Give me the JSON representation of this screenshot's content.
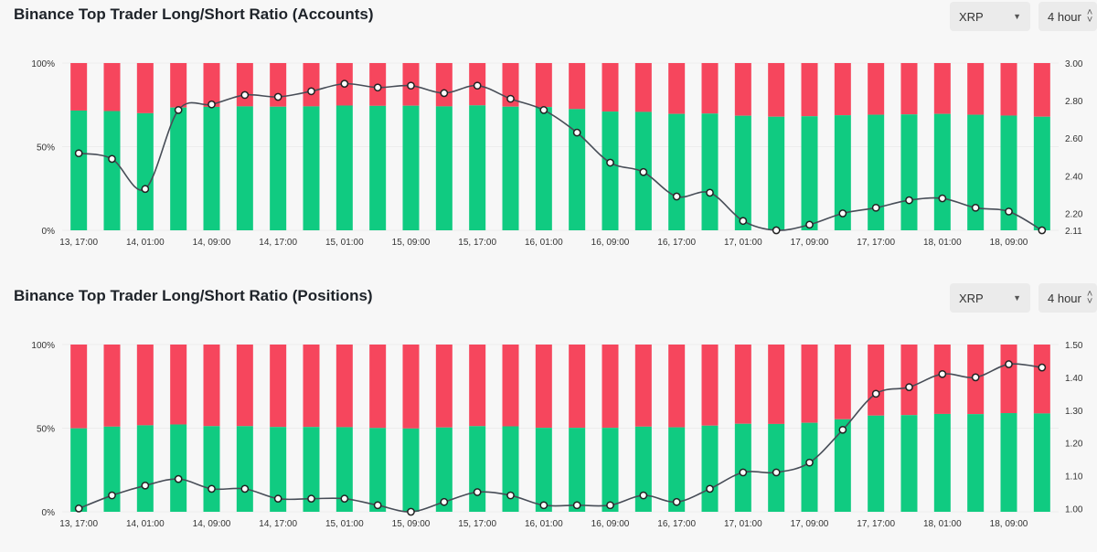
{
  "panels": [
    {
      "title": "Binance Top Trader Long/Short Ratio (Accounts)",
      "symbol_select": {
        "value": "XRP",
        "icon": "chevron-down-icon"
      },
      "interval_select": {
        "value": "4 hour",
        "icon": "up-down-icon"
      }
    },
    {
      "title": "Binance Top Trader Long/Short Ratio (Positions)",
      "symbol_select": {
        "value": "XRP",
        "icon": "chevron-down-icon"
      },
      "interval_select": {
        "value": "4 hour",
        "icon": "up-down-icon"
      }
    }
  ],
  "colors": {
    "long": "#10cb81",
    "short": "#f6465d",
    "line": "#474d57",
    "point_fill": "#ffffff"
  },
  "chart_data": [
    {
      "type": "bar",
      "title": "Binance Top Trader Long/Short Ratio (Accounts)",
      "stacked": true,
      "x_tick_labels": [
        "13, 17:00",
        "14, 01:00",
        "14, 09:00",
        "14, 17:00",
        "15, 01:00",
        "15, 09:00",
        "15, 17:00",
        "16, 01:00",
        "16, 09:00",
        "16, 17:00",
        "17, 01:00",
        "17, 09:00",
        "17, 17:00",
        "18, 01:00",
        "18, 09:00"
      ],
      "y_left_ticks": [
        "0%",
        "50%",
        "100%"
      ],
      "y_right_ticks": [
        "2.11",
        "2.20",
        "2.40",
        "2.60",
        "2.80",
        "3.00"
      ],
      "y_right_range": [
        2.11,
        3.0
      ],
      "long_pct": [
        71.6,
        71.3,
        70,
        73.4,
        73.8,
        74.1,
        73.9,
        74.1,
        74.6,
        74.4,
        74.5,
        74.1,
        74.7,
        73.9,
        73.7,
        72.5,
        71,
        70.8,
        69.6,
        69.8,
        68.5,
        67.9,
        68.2,
        68.8,
        69.1,
        69.3,
        69.6,
        69.1,
        68.6,
        67.9
      ],
      "ratio": [
        2.52,
        2.49,
        2.33,
        2.75,
        2.78,
        2.83,
        2.82,
        2.85,
        2.89,
        2.87,
        2.88,
        2.84,
        2.88,
        2.81,
        2.75,
        2.63,
        2.47,
        2.42,
        2.29,
        2.31,
        2.16,
        2.11,
        2.14,
        2.2,
        2.23,
        2.27,
        2.28,
        2.23,
        2.21,
        2.11
      ]
    },
    {
      "type": "bar",
      "title": "Binance Top Trader Long/Short Ratio (Positions)",
      "stacked": true,
      "x_tick_labels": [
        "13, 17:00",
        "14, 01:00",
        "14, 09:00",
        "14, 17:00",
        "15, 01:00",
        "15, 09:00",
        "15, 17:00",
        "16, 01:00",
        "16, 09:00",
        "16, 17:00",
        "17, 01:00",
        "17, 09:00",
        "17, 17:00",
        "18, 01:00",
        "18, 09:00"
      ],
      "y_left_ticks": [
        "0%",
        "50%",
        "100%"
      ],
      "y_right_ticks": [
        "1.00",
        "1.10",
        "1.20",
        "1.30",
        "1.40",
        "1.50"
      ],
      "y_right_range": [
        0.99,
        1.5
      ],
      "long_pct": [
        49.9,
        50.9,
        51.7,
        52.2,
        51.2,
        51.2,
        50.7,
        50.7,
        50.6,
        50.1,
        49.8,
        50.4,
        51.2,
        51.1,
        50.2,
        50.2,
        50.2,
        50.9,
        50.5,
        51.5,
        52.6,
        52.5,
        53.2,
        55.3,
        57.5,
        57.8,
        58.5,
        58.4,
        59,
        58.8
      ],
      "ratio": [
        1.0,
        1.04,
        1.07,
        1.09,
        1.06,
        1.06,
        1.03,
        1.03,
        1.03,
        1.01,
        0.99,
        1.02,
        1.05,
        1.04,
        1.01,
        1.01,
        1.01,
        1.04,
        1.02,
        1.06,
        1.11,
        1.11,
        1.14,
        1.24,
        1.35,
        1.37,
        1.41,
        1.4,
        1.44,
        1.43
      ]
    }
  ]
}
